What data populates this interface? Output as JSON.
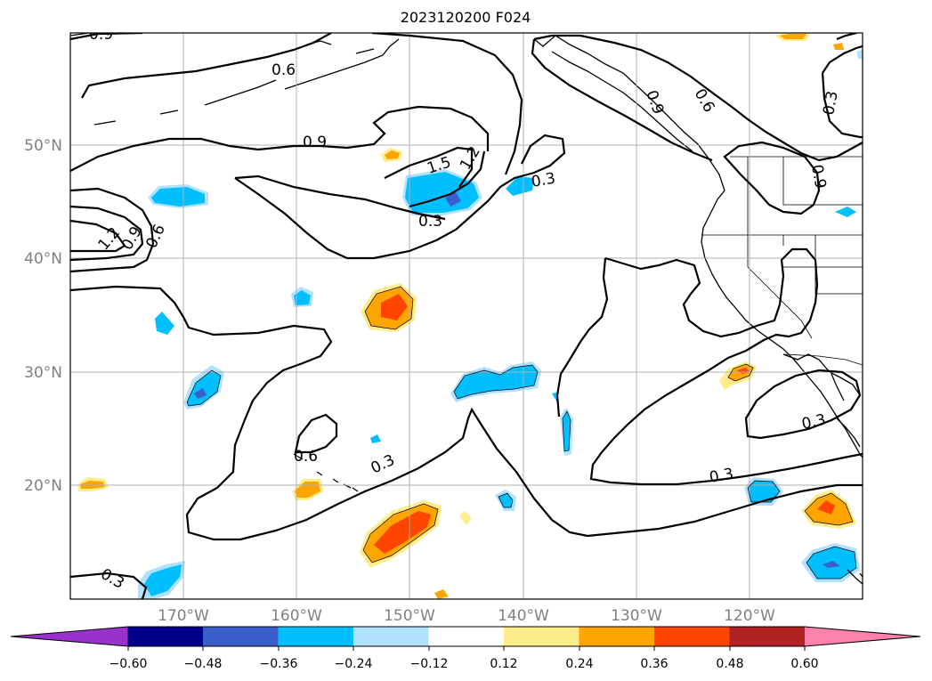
{
  "figure": {
    "title": "2023120200 F024"
  },
  "map": {
    "lat_labels": [
      "50°N",
      "40°N",
      "30°N",
      "20°N"
    ],
    "lon_labels": [
      "170°W",
      "160°W",
      "150°W",
      "140°W",
      "130°W",
      "120°W"
    ],
    "gridlines": true,
    "contour_labels": [
      "0.9",
      "0.6",
      "0.9",
      "1.5",
      "1.2",
      "0.3",
      "0.3",
      "1.2",
      "0.9",
      "0.6",
      "0.6",
      "0.3",
      "0.3",
      "0.3",
      "0.3",
      "0.6",
      "0.9",
      "0.3",
      "0.9"
    ]
  },
  "colorbar": {
    "tick_labels": [
      "−0.60",
      "−0.48",
      "−0.36",
      "−0.24",
      "−0.12",
      "0.12",
      "0.24",
      "0.36",
      "0.48",
      "0.60"
    ],
    "colors": [
      "#9932cc",
      "#00008b",
      "#3a5fcd",
      "#00bfff",
      "#b0e2ff",
      "#ffffff",
      "#ffec8b",
      "#ffa500",
      "#ff4500",
      "#b22222",
      "#ff82ab"
    ]
  }
}
